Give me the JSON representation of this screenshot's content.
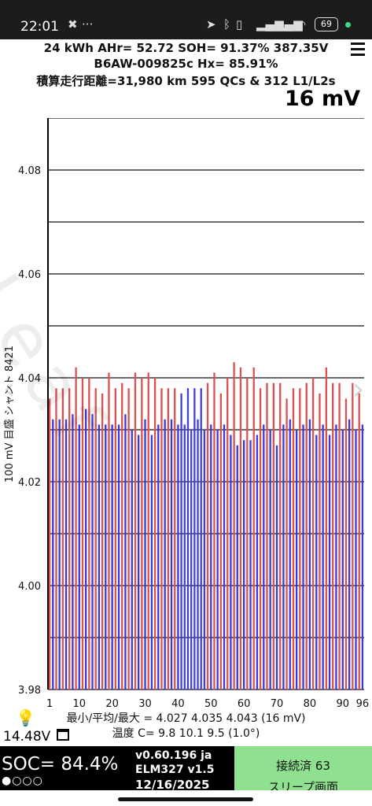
{
  "status_bar": {
    "time": "22:01",
    "icons": [
      "tools-icon",
      "more-icon",
      "location-arrow-icon",
      "bluetooth-icon",
      "vibrate-off-icon",
      "signal-icon",
      "signal-icon",
      "wifi-icon"
    ],
    "battery": "69"
  },
  "header": {
    "line1": "24 kWh  AHr= 52.72  SOH= 91.37%   387.35V",
    "line2": "B6AW-009825c   Hx= 85.91%",
    "line3": "積算走行距離=31,980 km 595 QCs & 312 L1/L2s",
    "scale": "16 mV"
  },
  "chart_data": {
    "type": "bar",
    "ylabel": "100 mV 目盛 シャント 8421",
    "ylim": [
      3.98,
      4.09
    ],
    "y_ticks": [
      "4.08",
      "4.06",
      "4.04",
      "4.02",
      "4.00",
      "3.98"
    ],
    "x_ticks": [
      "1",
      "10",
      "20",
      "30",
      "40",
      "50",
      "60",
      "70",
      "80",
      "90",
      "96"
    ],
    "watermark": "Leaf",
    "series": [
      {
        "values": [
          4.036,
          4.032,
          4.038,
          4.032,
          4.038,
          4.032,
          4.038,
          4.033,
          4.042,
          4.031,
          4.04,
          4.034,
          4.04,
          4.033,
          4.038,
          4.031,
          4.037,
          4.031,
          4.041,
          4.031,
          4.038,
          4.031,
          4.039,
          4.033,
          4.038,
          4.03,
          4.041,
          4.029,
          4.04,
          4.032,
          4.041,
          4.029,
          4.04,
          4.031,
          4.038,
          4.032,
          4.038,
          4.032,
          4.038,
          4.031,
          4.037,
          4.031,
          4.038,
          4.03,
          4.038,
          4.032,
          4.038,
          4.03,
          4.039,
          4.031,
          4.041,
          4.03,
          4.037,
          4.031,
          4.04,
          4.029,
          4.043,
          4.027,
          4.042,
          4.028,
          4.04,
          4.028,
          4.042,
          4.029,
          4.038,
          4.031,
          4.039,
          4.03,
          4.039,
          4.027,
          4.039,
          4.031,
          4.036,
          4.032,
          4.038,
          4.03,
          4.038,
          4.031,
          4.039,
          4.032,
          4.04,
          4.029,
          4.037,
          4.031,
          4.042,
          4.029,
          4.039,
          4.031,
          4.039,
          4.03,
          4.036,
          4.032,
          4.039,
          4.03,
          4.037,
          4.031
        ]
      }
    ],
    "colors": {
      "odd": "#dc5050",
      "even": "#3a3adc",
      "highlight_range": [
        41,
        48
      ],
      "highlight_color": "#4040dd"
    }
  },
  "stats": {
    "line1": "最小/平均/最大 = 4.027 4.035 4.043  (16 mV)",
    "line2": "温度 C= 9.8  10.1  9.5  (1.0°)"
  },
  "left_info": {
    "voltage": "14.48V"
  },
  "footer": {
    "soc": "SOC= 84.4%",
    "soc_dots": "●○○○",
    "version": "v0.60.196 ja",
    "adapter": "ELM327 v1.5",
    "date": "12/16/2025",
    "connect_line1": "接続済 63",
    "connect_line2": "スリープ画面"
  }
}
